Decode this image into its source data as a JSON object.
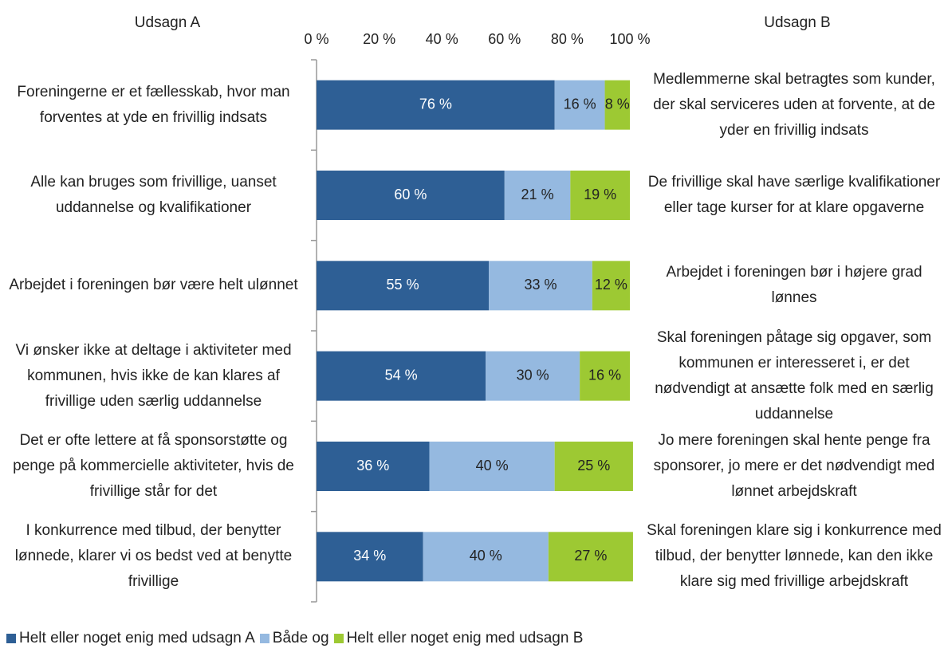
{
  "chart_data": {
    "type": "stacked-bar-horizontal",
    "header_a": "Udsagn A",
    "header_b": "Udsagn B",
    "categories": [
      "Foreningerne er et fællesskab, hvor man forventes at yde en frivillig indsats",
      "Alle kan bruges som frivillige, uanset uddannelse og kvalifikationer",
      "Arbejdet i foreningen bør være helt ulønnet",
      "Vi ønsker ikke at deltage i aktiviteter med kommunen, hvis ikke de kan klares af frivillige uden særlig uddannelse",
      "Det er ofte lettere at få sponsorstøtte og penge på kommercielle aktiviteter, hvis de frivillige står for det",
      "I konkurrence med tilbud, der benytter lønnede, klarer vi os bedst ved at benytte frivillige"
    ],
    "statements_b": [
      "Medlemmerne skal betragtes som kunder, der skal serviceres uden at forvente, at de yder en frivillig indsats",
      "De frivillige skal have særlige kvalifikationer eller tage kurser for at klare opgaverne",
      "Arbejdet i foreningen bør i højere grad lønnes",
      "Skal foreningen påtage sig opgaver, som kommunen er interesseret i, er det nødvendigt at ansætte folk med en særlig uddannelse",
      "Jo mere foreningen skal hente penge fra sponsorer, jo mere er det nødvendigt med lønnet arbejdskraft",
      "Skal foreningen klare sig i konkurrence med tilbud, der benytter lønnede, kan den ikke klare sig med frivillige arbejdskraft"
    ],
    "series": [
      {
        "name": "Helt eller noget enig med udsagn A",
        "color": "#2e5f95",
        "label_color": "#ffffff",
        "values": [
          76,
          60,
          55,
          54,
          36,
          34
        ],
        "value_labels": [
          "76 %",
          "60 %",
          "55 %",
          "54 %",
          "36 %",
          "34 %"
        ]
      },
      {
        "name": "Både og",
        "color": "#95b9e0",
        "label_color": "#222222",
        "values": [
          16,
          21,
          33,
          30,
          40,
          40
        ],
        "value_labels": [
          "16 %",
          "21 %",
          "33 %",
          "30 %",
          "40 %",
          "40 %"
        ]
      },
      {
        "name": "Helt eller noget enig med udsagn B",
        "color": "#9dc933",
        "label_color": "#222222",
        "values": [
          8,
          19,
          12,
          16,
          25,
          27
        ],
        "value_labels": [
          "8 %",
          "19 %",
          "12 %",
          "16 %",
          "25 %",
          "27 %"
        ]
      }
    ],
    "xlim": [
      0,
      100
    ],
    "xticks": [
      {
        "value": 0,
        "label": "0 %"
      },
      {
        "value": 20,
        "label": "20 %"
      },
      {
        "value": 40,
        "label": "40 %"
      },
      {
        "value": 60,
        "label": "60 %"
      },
      {
        "value": 80,
        "label": "80 %"
      },
      {
        "value": 100,
        "label": "100 %"
      }
    ]
  }
}
